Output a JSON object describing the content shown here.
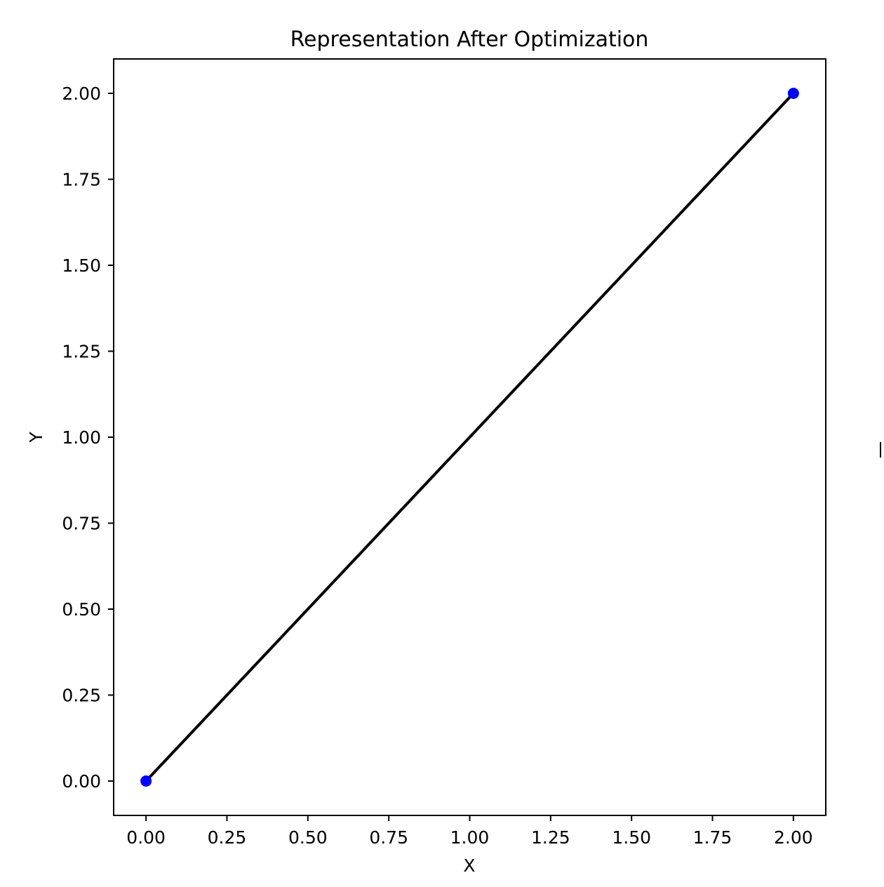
{
  "chart_data": {
    "type": "line",
    "title": "Representation After Optimization",
    "xlabel": "X",
    "ylabel": "Y",
    "xlim": [
      -0.1,
      2.1
    ],
    "ylim": [
      -0.1,
      2.1
    ],
    "xticks": [
      "0.00",
      "0.25",
      "0.50",
      "0.75",
      "1.00",
      "1.25",
      "1.50",
      "1.75",
      "2.00"
    ],
    "yticks": [
      "0.00",
      "0.25",
      "0.50",
      "0.75",
      "1.00",
      "1.25",
      "1.50",
      "1.75",
      "2.00"
    ],
    "grid": false,
    "series": [
      {
        "x": [
          0,
          2
        ],
        "y": [
          0,
          2
        ],
        "color": "#000000"
      }
    ],
    "points": [
      {
        "x": 0,
        "y": 0,
        "color": "#0000ff"
      },
      {
        "x": 2,
        "y": 2,
        "color": "#0000ff"
      }
    ]
  }
}
